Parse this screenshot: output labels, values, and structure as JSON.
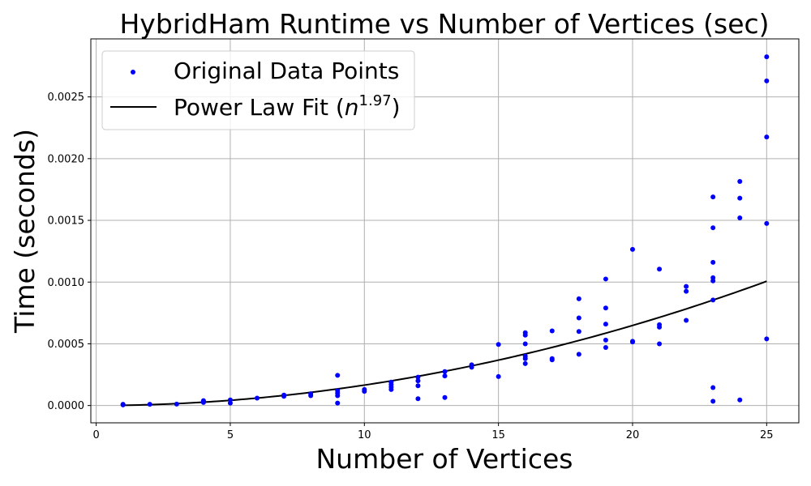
{
  "chart_data": {
    "type": "scatter",
    "title": "HybridHam Runtime vs Number of Vertices (sec)",
    "xlabel": "Number of Vertices",
    "ylabel": "Time (seconds)",
    "xlim": [
      -0.2,
      26.2
    ],
    "ylim": [
      -0.00014,
      0.00297
    ],
    "xticks": [
      0,
      5,
      10,
      15,
      20,
      25
    ],
    "xtick_labels": [
      "0",
      "5",
      "10",
      "15",
      "20",
      "25"
    ],
    "yticks": [
      0.0,
      0.0005,
      0.001,
      0.0015,
      0.002,
      0.0025
    ],
    "ytick_labels": [
      "0.0000",
      "0.0005",
      "0.0010",
      "0.0015",
      "0.0020",
      "0.0025"
    ],
    "grid": true,
    "legend_position": "top-left",
    "series": [
      {
        "name": "Original Data Points",
        "kind": "scatter",
        "color": "#0000ff",
        "points": [
          [
            1,
            5e-06
          ],
          [
            1,
            1e-05
          ],
          [
            2,
            1e-05
          ],
          [
            3,
            1.2e-05
          ],
          [
            4,
            2.5e-05
          ],
          [
            4,
            3.5e-05
          ],
          [
            4,
            4e-05
          ],
          [
            5,
            2e-05
          ],
          [
            5,
            4.5e-05
          ],
          [
            6,
            6e-05
          ],
          [
            7,
            7.5e-05
          ],
          [
            7,
            8.5e-05
          ],
          [
            8,
            8e-05
          ],
          [
            8,
            9.5e-05
          ],
          [
            9,
            2e-05
          ],
          [
            9,
            8e-05
          ],
          [
            9,
            0.0001
          ],
          [
            9,
            0.00012
          ],
          [
            9,
            0.000245
          ],
          [
            10,
            0.000115
          ],
          [
            10,
            0.00013
          ],
          [
            11,
            0.00013
          ],
          [
            11,
            0.00015
          ],
          [
            11,
            0.00017
          ],
          [
            11,
            0.00019
          ],
          [
            12,
            5.5e-05
          ],
          [
            12,
            0.00016
          ],
          [
            12,
            0.0002
          ],
          [
            12,
            0.00023
          ],
          [
            13,
            6.5e-05
          ],
          [
            13,
            0.00024
          ],
          [
            13,
            0.000275
          ],
          [
            14,
            0.00031
          ],
          [
            14,
            0.00033
          ],
          [
            15,
            0.000235
          ],
          [
            15,
            0.000495
          ],
          [
            16,
            0.00034
          ],
          [
            16,
            0.00038
          ],
          [
            16,
            0.0004
          ],
          [
            16,
            0.0005
          ],
          [
            16,
            0.00057
          ],
          [
            16,
            0.00059
          ],
          [
            17,
            0.00037
          ],
          [
            17,
            0.00038
          ],
          [
            17,
            0.000605
          ],
          [
            18,
            0.000415
          ],
          [
            18,
            0.0006
          ],
          [
            18,
            0.00071
          ],
          [
            18,
            0.000865
          ],
          [
            19,
            0.00047
          ],
          [
            19,
            0.00053
          ],
          [
            19,
            0.00066
          ],
          [
            19,
            0.00079
          ],
          [
            19,
            0.001025
          ],
          [
            20,
            0.000515
          ],
          [
            20,
            0.00052
          ],
          [
            20,
            0.001265
          ],
          [
            21,
            0.0005
          ],
          [
            21,
            0.000635
          ],
          [
            21,
            0.000655
          ],
          [
            21,
            0.001105
          ],
          [
            22,
            0.00069
          ],
          [
            22,
            0.000925
          ],
          [
            22,
            0.000965
          ],
          [
            23,
            3.5e-05
          ],
          [
            23,
            0.000145
          ],
          [
            23,
            0.000855
          ],
          [
            23,
            0.00101
          ],
          [
            23,
            0.001035
          ],
          [
            23,
            0.00116
          ],
          [
            23,
            0.00144
          ],
          [
            23,
            0.00169
          ],
          [
            24,
            4.5e-05
          ],
          [
            24,
            0.00152
          ],
          [
            24,
            0.00168
          ],
          [
            24,
            0.001815
          ],
          [
            25,
            0.00054
          ],
          [
            25,
            0.001475
          ],
          [
            25,
            0.002175
          ],
          [
            25,
            0.00263
          ],
          [
            25,
            0.002825
          ]
        ]
      },
      {
        "name": "Power Law Fit",
        "legend_base": "Power Law Fit (",
        "legend_var": "n",
        "legend_exp": "1.97",
        "legend_close": ")",
        "kind": "line",
        "color": "#000000",
        "x_range": [
          1,
          25
        ],
        "coefficient": 1.774e-06,
        "exponent": 1.97
      }
    ]
  }
}
